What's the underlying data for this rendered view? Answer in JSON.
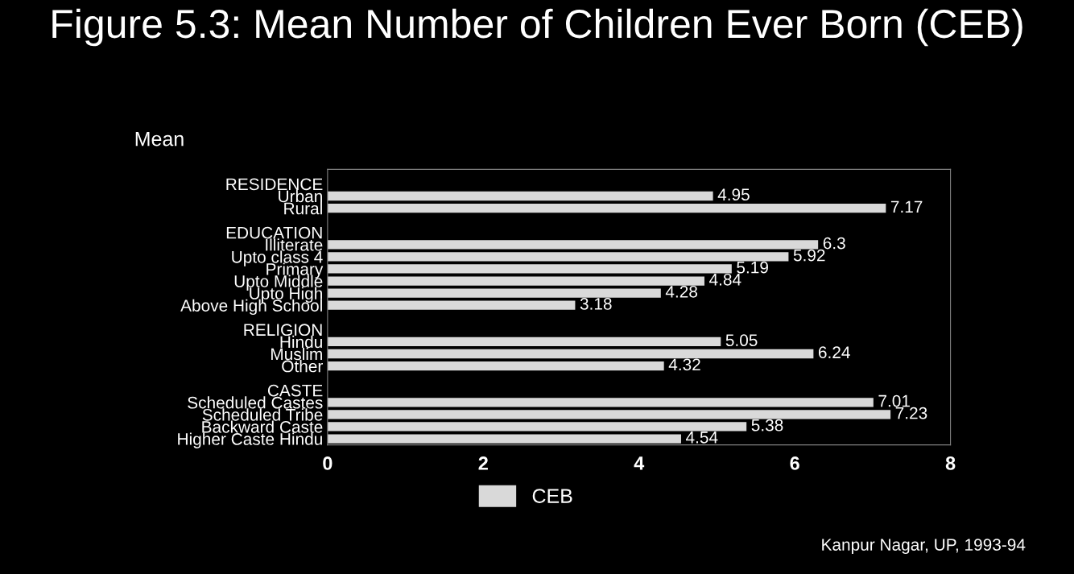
{
  "chart_data": {
    "type": "bar",
    "orientation": "horizontal",
    "title": "Figure 5.3: Mean Number of Children Ever Born (CEB)",
    "ylabel": "Mean",
    "categories": [
      "RESIDENCE",
      "Urban",
      "Rural",
      null,
      "EDUCATION",
      "Illiterate",
      "Upto class 4",
      "Primary",
      "Upto Middle",
      "Upto High",
      "Above High School",
      null,
      "RELIGION",
      "Hindu",
      "Muslim",
      "Other",
      null,
      "CASTE",
      "Scheduled Castes",
      "Scheduled Tribe",
      "Backward Caste",
      "Higher Caste Hindu"
    ],
    "series": [
      {
        "name": "CEB",
        "color": "#d9d9d9",
        "values": [
          null,
          4.95,
          7.17,
          null,
          null,
          6.3,
          5.92,
          5.19,
          4.84,
          4.28,
          3.18,
          null,
          null,
          5.05,
          6.24,
          4.32,
          null,
          null,
          7.01,
          7.23,
          5.38,
          4.54
        ]
      }
    ],
    "xlim": [
      0,
      8
    ],
    "xticks": [
      0,
      2,
      4,
      6,
      8
    ],
    "grid": false,
    "legend": "bottom",
    "data_labels": true,
    "annotations": [
      "Kanpur Nagar, UP, 1993-94"
    ]
  }
}
